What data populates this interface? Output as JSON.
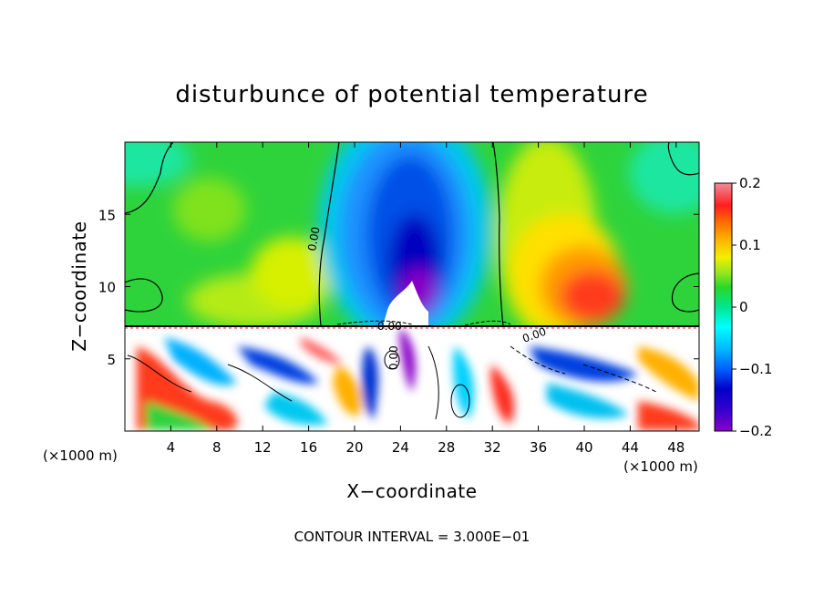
{
  "chart_data": {
    "type": "heatmap",
    "title": "disturbunce of potential temperature",
    "xlabel": "X−coordinate",
    "ylabel": "Z−coordinate",
    "x_unit_left": "(×1000 m)",
    "x_unit_right": "(×1000 m)",
    "footnote": "CONTOUR INTERVAL = 3.000E−01",
    "xlim": [
      0,
      50
    ],
    "ylim": [
      0,
      20
    ],
    "x_ticks": [
      4,
      8,
      12,
      16,
      20,
      24,
      28,
      32,
      36,
      40,
      44,
      48
    ],
    "x_tick_labels": [
      "4",
      "8",
      "12",
      "16",
      "20",
      "24",
      "28",
      "32",
      "36",
      "40",
      "44",
      "48"
    ],
    "y_ticks": [
      5,
      10,
      15
    ],
    "y_tick_labels": [
      "5",
      "10",
      "15"
    ],
    "contour_labels": [
      "0.00",
      "0.00",
      "0.00",
      "0.00"
    ],
    "colorbar": {
      "range": [
        -0.2,
        0.2
      ],
      "ticks": [
        0.2,
        0.1,
        0,
        -0.1,
        -0.2
      ],
      "tick_labels": [
        "0.2",
        "0.1",
        "0",
        "−0.1",
        "−0.2"
      ],
      "colors": [
        "#8a00c8",
        "#0000c8",
        "#0060ff",
        "#00b8ff",
        "#00ffff",
        "#00e690",
        "#28d828",
        "#9ae61e",
        "#f0f000",
        "#ffb400",
        "#ff6e00",
        "#ff1e1e",
        "#f08c9b"
      ]
    },
    "regions": [
      {
        "name": "upper layer",
        "z_range": [
          7.3,
          20
        ],
        "dominant_value": 0.0
      },
      {
        "name": "cold plume",
        "x_range": [
          18,
          32
        ],
        "z_range": [
          7.3,
          20
        ],
        "min_value": -0.2
      },
      {
        "name": "warm anomaly",
        "x_range": [
          34,
          46
        ],
        "z_range": [
          8,
          16
        ],
        "max_value": 0.15
      },
      {
        "name": "lower turbulent layer",
        "z_range": [
          0,
          7.3
        ],
        "value_range": [
          -0.2,
          0.2
        ]
      }
    ]
  }
}
